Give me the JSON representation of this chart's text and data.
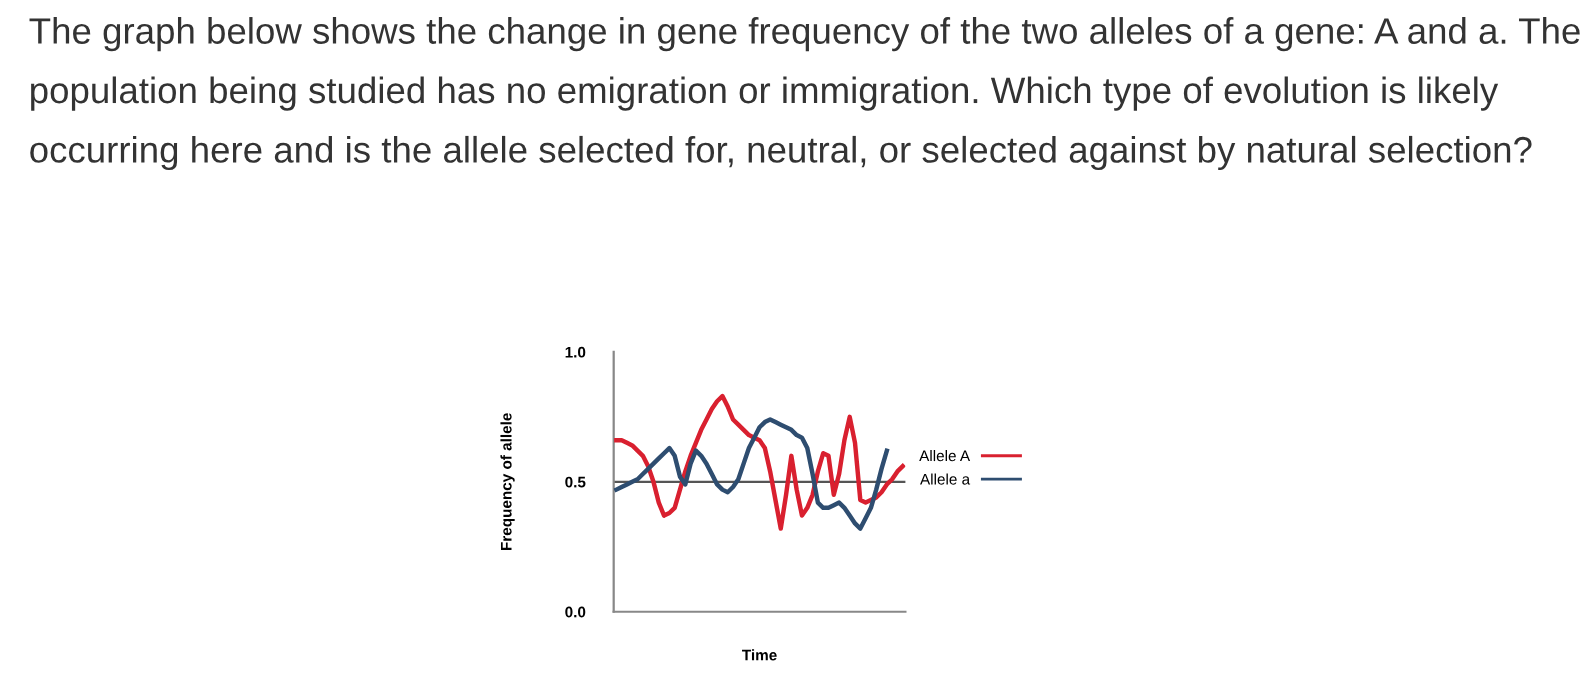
{
  "chart_data": {
    "type": "line",
    "title": "The graph below shows the change in gene frequency of the two alleles of a gene: A and a. The population being studied has no emigration or immigration. Which type of evolution is likely occurring here and is the allele selected for, neutral, or selected against by natural selection?",
    "xlabel": "Time",
    "ylabel": "Frequency of allele",
    "categories": [
      null,
      null,
      null,
      null,
      null,
      null,
      null,
      null,
      null,
      null,
      null,
      null,
      null,
      null,
      null,
      null,
      null,
      null,
      null,
      null,
      null,
      null,
      null,
      null,
      null,
      null,
      null,
      null,
      null,
      null,
      null,
      null,
      null,
      null,
      null,
      null,
      null,
      null,
      null,
      null,
      null,
      null,
      null,
      null,
      null,
      null,
      null,
      null,
      null,
      null,
      null,
      null,
      null,
      null,
      null
    ],
    "series": [
      {
        "name": "Allele A",
        "color": "#d9202f",
        "values": [
          0.66,
          0.66,
          0.65,
          0.64,
          0.62,
          0.6,
          0.56,
          0.5,
          0.42,
          0.37,
          0.38,
          0.4,
          0.47,
          0.54,
          0.6,
          0.65,
          0.7,
          0.74,
          0.78,
          0.81,
          0.83,
          0.79,
          0.74,
          0.72,
          0.7,
          0.68,
          0.67,
          0.66,
          0.63,
          0.54,
          0.43,
          0.32,
          0.45,
          0.6,
          0.47,
          0.37,
          0.4,
          0.45,
          0.54,
          0.61,
          0.6,
          0.45,
          0.53,
          0.66,
          0.75,
          0.65,
          0.43,
          0.42,
          0.43,
          0.44,
          0.46,
          0.49,
          0.51,
          0.54,
          0.56
        ]
      },
      {
        "name": "Allele a",
        "color": "#2e4d70",
        "values": [
          0.47,
          0.48,
          0.49,
          0.5,
          0.51,
          0.53,
          0.55,
          0.57,
          0.59,
          0.61,
          0.63,
          0.6,
          0.52,
          0.49,
          0.57,
          0.62,
          0.6,
          0.57,
          0.53,
          0.49,
          0.47,
          0.46,
          0.48,
          0.51,
          0.57,
          0.63,
          0.67,
          0.71,
          0.73,
          0.74,
          0.73,
          0.72,
          0.71,
          0.7,
          0.68,
          0.67,
          0.63,
          0.53,
          0.42,
          0.4,
          0.4,
          0.41,
          0.42,
          0.4,
          0.37,
          0.34,
          0.32,
          0.36,
          0.4,
          0.47,
          0.55,
          0.62,
          null,
          null,
          null
        ]
      }
    ],
    "ylim": [
      0.0,
      1.0
    ],
    "yticks": [
      {
        "value": 0.0,
        "label": "0.0"
      },
      {
        "value": 0.5,
        "label": "0.5"
      },
      {
        "value": 1.0,
        "label": "1.0"
      }
    ],
    "ref_lines": [
      {
        "axis": "y",
        "value": 0.5,
        "color": "#555555"
      }
    ],
    "legend": "right",
    "grid": false
  }
}
